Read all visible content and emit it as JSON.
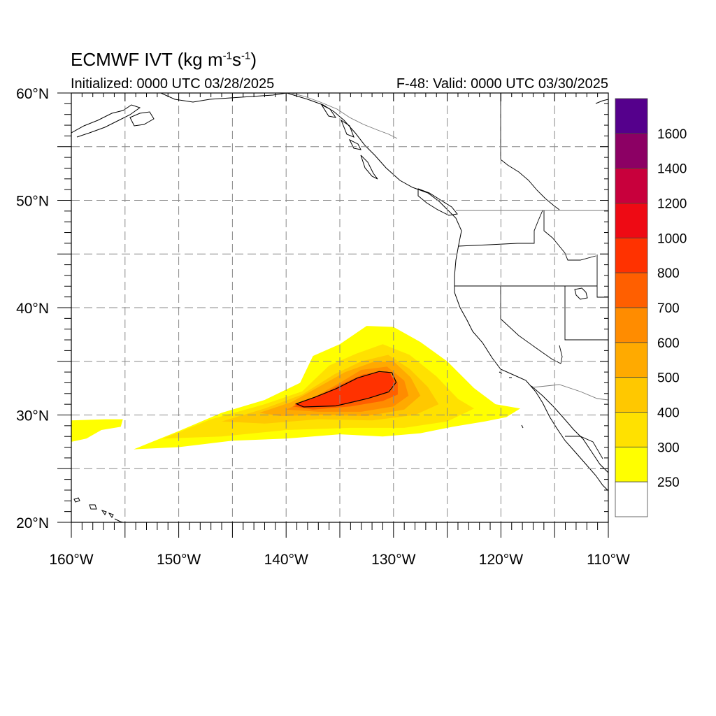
{
  "header": {
    "title_main": "ECMWF IVT (kg m",
    "title_exp1": "-1",
    "title_mid": "s",
    "title_exp2": "-1",
    "title_end": ")",
    "initialized": "Initialized: 0000 UTC 03/28/2025",
    "valid": "F-48: Valid: 0000 UTC 03/30/2025"
  },
  "map": {
    "lon_range": [
      -160,
      -110
    ],
    "lat_range": [
      20,
      60
    ],
    "lon_ticks": [
      {
        "value": -160,
        "label": "160°W"
      },
      {
        "value": -150,
        "label": "150°W"
      },
      {
        "value": -140,
        "label": "140°W"
      },
      {
        "value": -130,
        "label": "130°W"
      },
      {
        "value": -120,
        "label": "120°W"
      },
      {
        "value": -110,
        "label": "110°W"
      }
    ],
    "lat_ticks": [
      {
        "value": 60,
        "label": "60°N"
      },
      {
        "value": 50,
        "label": "50°N"
      },
      {
        "value": 40,
        "label": "40°N"
      },
      {
        "value": 30,
        "label": "30°N"
      },
      {
        "value": 20,
        "label": "20°N"
      }
    ],
    "grid_lons": [
      -155,
      -150,
      -145,
      -140,
      -135,
      -130,
      -125,
      -120,
      -115
    ],
    "grid_lats": [
      55,
      50,
      45,
      40,
      35,
      30,
      25
    ],
    "land_color": "#ffffff",
    "coast_color": "#000000"
  },
  "colorbar": {
    "levels": [
      "250",
      "300",
      "400",
      "500",
      "600",
      "700",
      "800",
      "1000",
      "1200",
      "1400",
      "1600"
    ],
    "colors": [
      "#ffffff",
      "#ffff00",
      "#ffe100",
      "#ffc800",
      "#ffaa00",
      "#ff8c00",
      "#ff5f00",
      "#ff3200",
      "#ee0a14",
      "#c8003c",
      "#8c0064",
      "#55008c"
    ]
  },
  "ivt_field": {
    "units": "kg m-1 s-1",
    "contour_level": 1000,
    "regions": [
      {
        "level": 250,
        "color": "#ffff00",
        "poly": [
          [
            -154.2,
            26.8
          ],
          [
            -150,
            28.5
          ],
          [
            -146,
            30.2
          ],
          [
            -142,
            31.4
          ],
          [
            -138.7,
            33.0
          ],
          [
            -137.5,
            35.5
          ],
          [
            -135,
            36.6
          ],
          [
            -132.5,
            38.3
          ],
          [
            -130,
            38.2
          ],
          [
            -127.5,
            36.8
          ],
          [
            -125,
            35.0
          ],
          [
            -122.5,
            32.5
          ],
          [
            -120.5,
            31.0
          ],
          [
            -118.2,
            30.6
          ],
          [
            -119.5,
            29.8
          ],
          [
            -121.5,
            29.4
          ],
          [
            -124.5,
            28.9
          ],
          [
            -127.5,
            28.3
          ],
          [
            -131.0,
            28.0
          ],
          [
            -135.0,
            28.2
          ],
          [
            -140.0,
            27.8
          ],
          [
            -145.0,
            27.6
          ],
          [
            -150.0,
            27.0
          ]
        ]
      },
      {
        "level": 250,
        "color": "#ffff00",
        "poly": [
          [
            -160,
            29.5
          ],
          [
            -156.8,
            29.6
          ],
          [
            -155.2,
            29.6
          ],
          [
            -155.4,
            28.9
          ],
          [
            -157.2,
            28.6
          ],
          [
            -158.6,
            27.8
          ],
          [
            -160,
            27.5
          ]
        ]
      },
      {
        "level": 300,
        "color": "#ffe100",
        "poly": [
          [
            -151.5,
            27.8
          ],
          [
            -147,
            29.6
          ],
          [
            -142,
            31.0
          ],
          [
            -138.5,
            32.2
          ],
          [
            -136.0,
            34.6
          ],
          [
            -133.5,
            35.7
          ],
          [
            -131.0,
            36.6
          ],
          [
            -128.5,
            35.6
          ],
          [
            -126.0,
            33.6
          ],
          [
            -124.0,
            31.5
          ],
          [
            -122.5,
            30.6
          ],
          [
            -125.0,
            29.4
          ],
          [
            -129.0,
            28.8
          ],
          [
            -134.0,
            28.8
          ],
          [
            -140.0,
            28.6
          ],
          [
            -146.0,
            28.0
          ]
        ]
      },
      {
        "level": 400,
        "color": "#ffc800",
        "poly": [
          [
            -146.0,
            29.4
          ],
          [
            -142.0,
            30.6
          ],
          [
            -138.5,
            31.9
          ],
          [
            -135.5,
            33.8
          ],
          [
            -133.0,
            35.0
          ],
          [
            -130.5,
            35.6
          ],
          [
            -128.5,
            34.3
          ],
          [
            -126.8,
            32.6
          ],
          [
            -125.8,
            31.0
          ],
          [
            -128.0,
            30.0
          ],
          [
            -132.0,
            29.5
          ],
          [
            -137.0,
            29.6
          ],
          [
            -142.0,
            29.2
          ]
        ]
      },
      {
        "level": 500,
        "color": "#ffaa00",
        "poly": [
          [
            -142.5,
            30.2
          ],
          [
            -139.5,
            31.2
          ],
          [
            -137.0,
            32.6
          ],
          [
            -134.5,
            34.0
          ],
          [
            -132.0,
            34.9
          ],
          [
            -130.0,
            35.0
          ],
          [
            -128.4,
            33.5
          ],
          [
            -127.5,
            31.8
          ],
          [
            -129.0,
            30.5
          ],
          [
            -132.5,
            29.9
          ],
          [
            -137.0,
            30.0
          ],
          [
            -140.5,
            29.9
          ]
        ]
      },
      {
        "level": 600,
        "color": "#ff8c00",
        "poly": [
          [
            -140.0,
            30.5
          ],
          [
            -137.5,
            31.6
          ],
          [
            -135.0,
            33.0
          ],
          [
            -133.0,
            34.2
          ],
          [
            -130.6,
            34.5
          ],
          [
            -129.0,
            33.2
          ],
          [
            -128.6,
            31.8
          ],
          [
            -130.0,
            30.8
          ],
          [
            -133.0,
            30.3
          ],
          [
            -137.0,
            30.3
          ]
        ]
      },
      {
        "level": 700,
        "color": "#ff5f00",
        "poly": [
          [
            -139.4,
            30.8
          ],
          [
            -137.3,
            31.6
          ],
          [
            -135.0,
            32.8
          ],
          [
            -132.8,
            33.8
          ],
          [
            -130.6,
            34.1
          ],
          [
            -129.6,
            33.0
          ],
          [
            -129.6,
            31.9
          ],
          [
            -131.0,
            31.3
          ],
          [
            -134.0,
            30.8
          ],
          [
            -137.5,
            30.5
          ]
        ]
      },
      {
        "level": 800,
        "color": "#ff3200",
        "poly": [
          [
            -139.2,
            31.0
          ],
          [
            -137.5,
            31.6
          ],
          [
            -135.5,
            32.4
          ],
          [
            -133.5,
            33.4
          ],
          [
            -131.5,
            34.0
          ],
          [
            -130.3,
            33.9
          ],
          [
            -129.9,
            33.0
          ],
          [
            -130.6,
            32.1
          ],
          [
            -132.5,
            31.5
          ],
          [
            -135.5,
            30.8
          ],
          [
            -138.5,
            30.7
          ]
        ]
      }
    ]
  }
}
